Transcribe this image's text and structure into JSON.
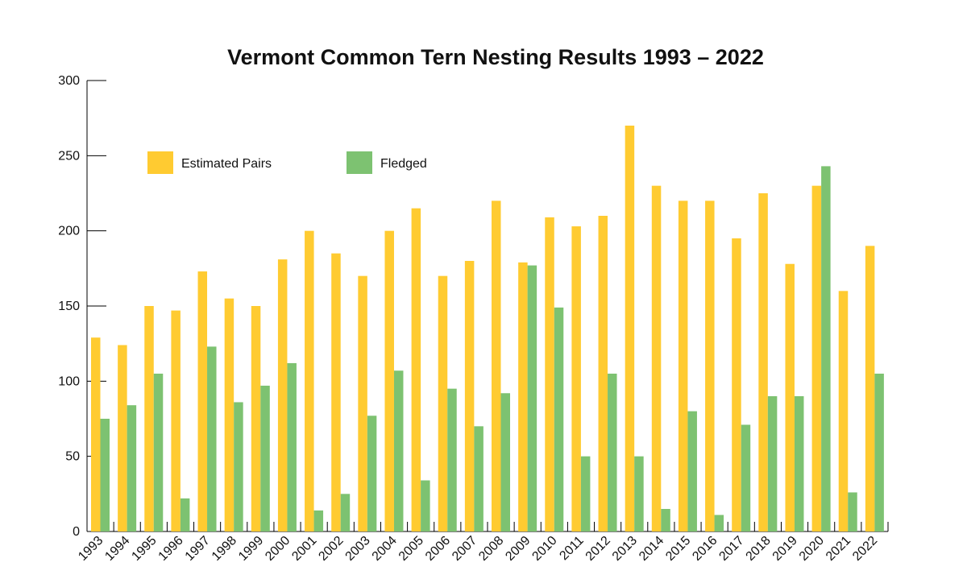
{
  "chart_data": {
    "type": "bar",
    "title": "Vermont Common Tern Nesting Results 1993 – 2022",
    "xlabel": "",
    "ylabel": "",
    "ylim": [
      0,
      300
    ],
    "yticks": [
      "0",
      "50",
      "100",
      "150",
      "200",
      "250",
      "300"
    ],
    "grid": false,
    "legend_position": "top-left",
    "categories": [
      "1993",
      "1994",
      "1995",
      "1996",
      "1997",
      "1998",
      "1999",
      "2000",
      "2001",
      "2002",
      "2003",
      "2004",
      "2005",
      "2006",
      "2007",
      "2008",
      "2009",
      "2010",
      "2011",
      "2012",
      "2013",
      "2014",
      "2015",
      "2016",
      "2017",
      "2018",
      "2019",
      "2020",
      "2021",
      "2022"
    ],
    "series": [
      {
        "name": "Estimated Pairs",
        "color": "#FFCB31",
        "values": [
          129,
          124,
          150,
          147,
          173,
          155,
          150,
          181,
          200,
          185,
          170,
          200,
          215,
          170,
          180,
          220,
          179,
          209,
          203,
          210,
          270,
          230,
          220,
          220,
          195,
          225,
          178,
          230,
          160,
          190
        ]
      },
      {
        "name": "Fledged",
        "color": "#7DC271",
        "values": [
          75,
          84,
          105,
          22,
          123,
          86,
          97,
          112,
          14,
          25,
          77,
          107,
          34,
          95,
          70,
          92,
          177,
          149,
          50,
          105,
          50,
          15,
          80,
          11,
          71,
          90,
          90,
          243,
          26,
          105
        ]
      }
    ]
  }
}
